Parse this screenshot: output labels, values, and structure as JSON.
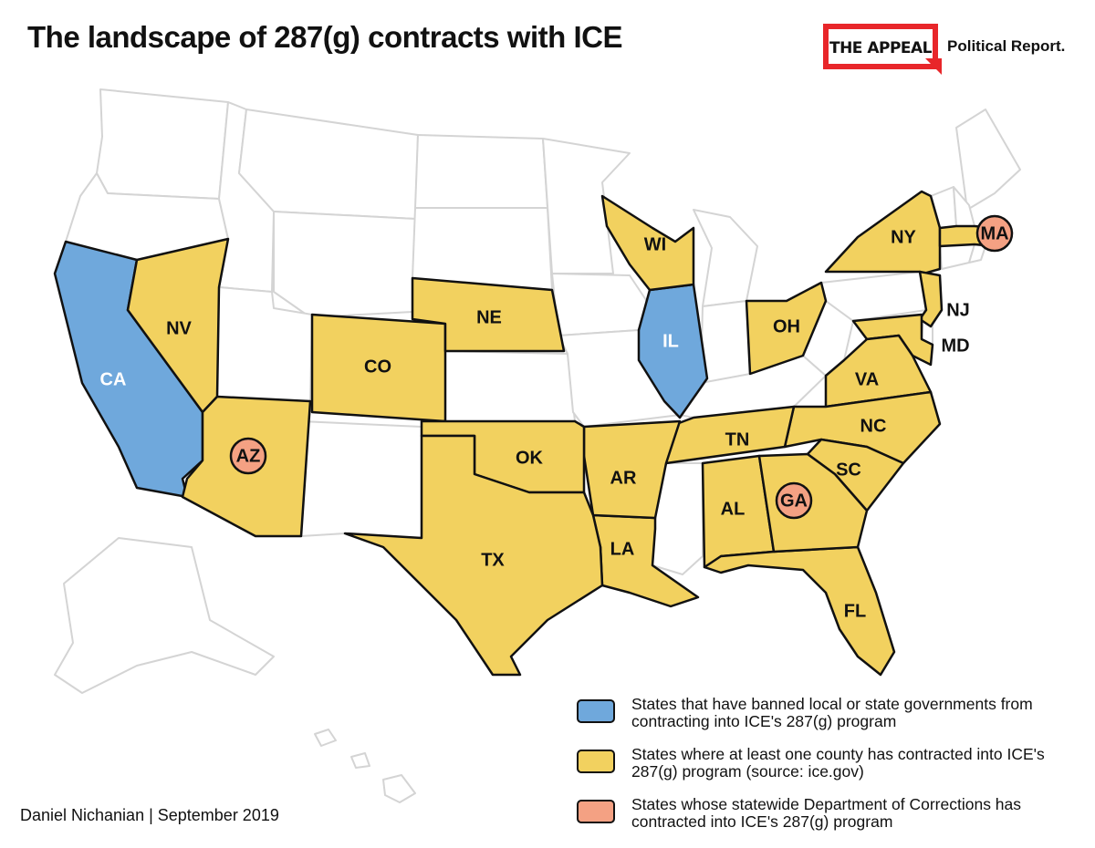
{
  "header": {
    "title": "The landscape of 287(g) contracts with ICE",
    "brand_box": "THE APPEAL",
    "brand_sub": "Political Report."
  },
  "colors": {
    "banned": "#6fa8dc",
    "county": "#f2d15f",
    "statewide": "#f4a183",
    "no_contract": "#ffffff",
    "border": "#111111",
    "light_border": "#d4d4d4"
  },
  "map": {
    "states": [
      {
        "abbr": "CA",
        "category": "banned"
      },
      {
        "abbr": "IL",
        "category": "banned"
      },
      {
        "abbr": "NV",
        "category": "county"
      },
      {
        "abbr": "CO",
        "category": "county"
      },
      {
        "abbr": "NE",
        "category": "county"
      },
      {
        "abbr": "WI",
        "category": "county"
      },
      {
        "abbr": "OH",
        "category": "county"
      },
      {
        "abbr": "NY",
        "category": "county"
      },
      {
        "abbr": "NJ",
        "category": "county"
      },
      {
        "abbr": "MD",
        "category": "county"
      },
      {
        "abbr": "VA",
        "category": "county"
      },
      {
        "abbr": "NC",
        "category": "county"
      },
      {
        "abbr": "TN",
        "category": "county"
      },
      {
        "abbr": "SC",
        "category": "county"
      },
      {
        "abbr": "AL",
        "category": "county"
      },
      {
        "abbr": "FL",
        "category": "county"
      },
      {
        "abbr": "LA",
        "category": "county"
      },
      {
        "abbr": "AR",
        "category": "county"
      },
      {
        "abbr": "OK",
        "category": "county"
      },
      {
        "abbr": "TX",
        "category": "county"
      },
      {
        "abbr": "AZ",
        "category": "statewide"
      },
      {
        "abbr": "GA",
        "category": "statewide"
      },
      {
        "abbr": "MA",
        "category": "statewide"
      }
    ]
  },
  "legend": [
    {
      "key": "banned",
      "text": "States that have banned local or state governments from contracting into ICE's 287(g) program"
    },
    {
      "key": "county",
      "text": "States where at least one county has contracted into ICE's 287(g) program (source: ice.gov)"
    },
    {
      "key": "statewide",
      "text": "States whose statewide Department of Corrections has contracted into ICE's 287(g) program"
    }
  ],
  "credit": "Daniel Nichanian | September 2019"
}
